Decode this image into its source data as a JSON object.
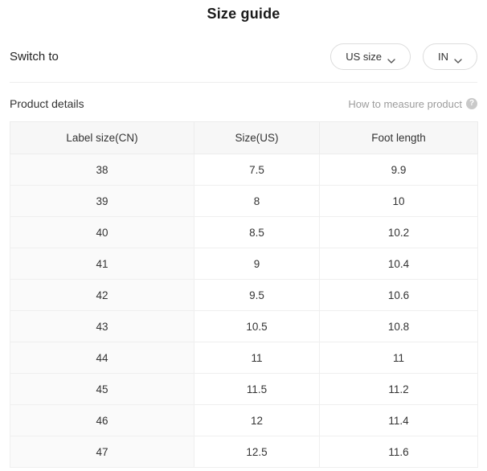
{
  "title": "Size guide",
  "switch_row": {
    "label": "Switch to",
    "size_dropdown": {
      "selected": "US size"
    },
    "unit_dropdown": {
      "selected": "IN"
    }
  },
  "product_details": {
    "label": "Product details",
    "measure_link": "How to measure product",
    "help_icon": "question-mark-icon",
    "help_glyph": "?"
  },
  "table": {
    "columns": [
      "Label size(CN)",
      "Size(US)",
      "Foot length"
    ],
    "rows": [
      [
        "38",
        "7.5",
        "9.9"
      ],
      [
        "39",
        "8",
        "10"
      ],
      [
        "40",
        "8.5",
        "10.2"
      ],
      [
        "41",
        "9",
        "10.4"
      ],
      [
        "42",
        "9.5",
        "10.6"
      ],
      [
        "43",
        "10.5",
        "10.8"
      ],
      [
        "44",
        "11",
        "11"
      ],
      [
        "45",
        "11.5",
        "11.2"
      ],
      [
        "46",
        "12",
        "11.4"
      ],
      [
        "47",
        "12.5",
        "11.6"
      ]
    ]
  },
  "colors": {
    "header_bg": "#f7f7f7",
    "first_col_bg": "#fafafa",
    "border": "#ececec",
    "muted_text": "#9c9c9c",
    "text": "#333333"
  }
}
